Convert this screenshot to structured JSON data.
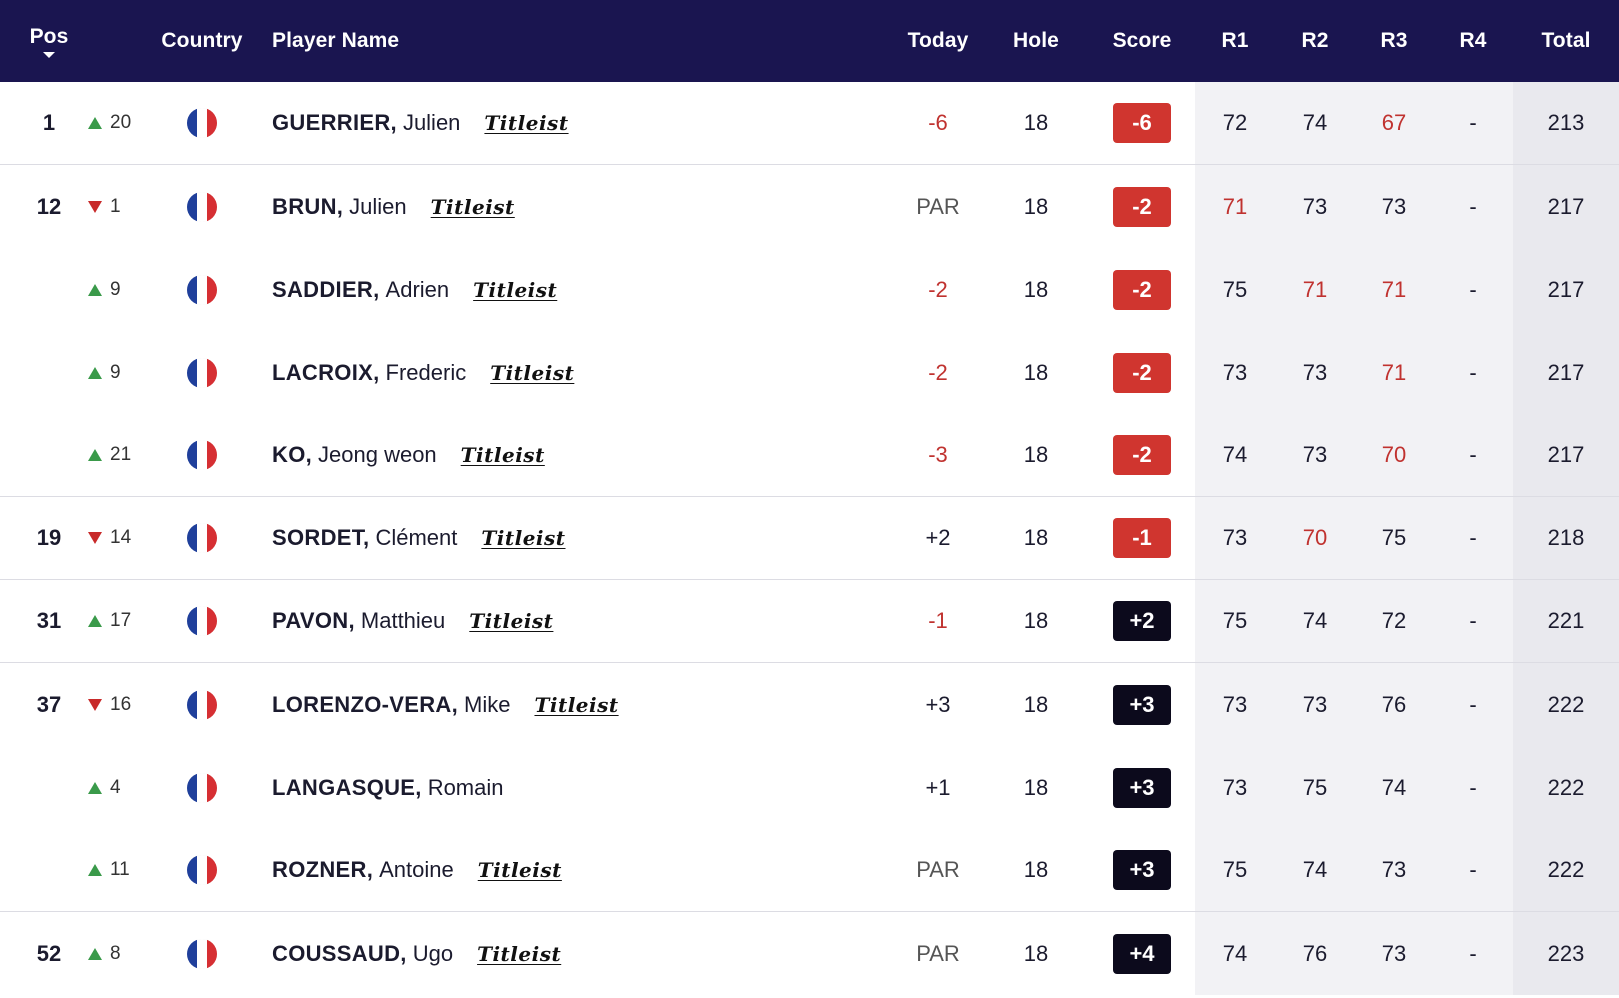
{
  "header": {
    "pos": "Pos",
    "country": "Country",
    "player_name": "Player Name",
    "today": "Today",
    "hole": "Hole",
    "score": "Score",
    "r1": "R1",
    "r2": "R2",
    "r3": "R3",
    "r4": "R4",
    "total": "Total"
  },
  "colors": {
    "header_bg": "#1a1550",
    "under_par": "#d0352f",
    "over_par": "#0c0a1c",
    "move_up": "#3a9a4a",
    "move_down": "#c82a2a"
  },
  "rows": [
    {
      "pos": "1",
      "dir": "up",
      "move": "20",
      "last": "GUERRIER,",
      "first": "Julien",
      "sponsor": "Titleist",
      "today": "-6",
      "hole": "18",
      "score": "-6",
      "r1": "72",
      "r2": "74",
      "r3": "67",
      "r4": "-",
      "total": "213",
      "sep": true
    },
    {
      "pos": "12",
      "dir": "down",
      "move": "1",
      "last": "BRUN,",
      "first": "Julien",
      "sponsor": "Titleist",
      "today": "PAR",
      "hole": "18",
      "score": "-2",
      "r1": "71",
      "r2": "73",
      "r3": "73",
      "r4": "-",
      "total": "217",
      "sep": false
    },
    {
      "pos": "",
      "dir": "up",
      "move": "9",
      "last": "SADDIER,",
      "first": "Adrien",
      "sponsor": "Titleist",
      "today": "-2",
      "hole": "18",
      "score": "-2",
      "r1": "75",
      "r2": "71",
      "r3": "71",
      "r4": "-",
      "total": "217",
      "sep": false
    },
    {
      "pos": "",
      "dir": "up",
      "move": "9",
      "last": "LACROIX,",
      "first": "Frederic",
      "sponsor": "Titleist",
      "today": "-2",
      "hole": "18",
      "score": "-2",
      "r1": "73",
      "r2": "73",
      "r3": "71",
      "r4": "-",
      "total": "217",
      "sep": false
    },
    {
      "pos": "",
      "dir": "up",
      "move": "21",
      "last": "KO,",
      "first": "Jeong weon",
      "sponsor": "Titleist",
      "today": "-3",
      "hole": "18",
      "score": "-2",
      "r1": "74",
      "r2": "73",
      "r3": "70",
      "r4": "-",
      "total": "217",
      "sep": true
    },
    {
      "pos": "19",
      "dir": "down",
      "move": "14",
      "last": "SORDET,",
      "first": "Clément",
      "sponsor": "Titleist",
      "today": "+2",
      "hole": "18",
      "score": "-1",
      "r1": "73",
      "r2": "70",
      "r3": "75",
      "r4": "-",
      "total": "218",
      "sep": true
    },
    {
      "pos": "31",
      "dir": "up",
      "move": "17",
      "last": "PAVON,",
      "first": "Matthieu",
      "sponsor": "Titleist",
      "today": "-1",
      "hole": "18",
      "score": "+2",
      "r1": "75",
      "r2": "74",
      "r3": "72",
      "r4": "-",
      "total": "221",
      "sep": true
    },
    {
      "pos": "37",
      "dir": "down",
      "move": "16",
      "last": "LORENZO-VERA,",
      "first": "Mike",
      "sponsor": "Titleist",
      "today": "+3",
      "hole": "18",
      "score": "+3",
      "r1": "73",
      "r2": "73",
      "r3": "76",
      "r4": "-",
      "total": "222",
      "sep": false
    },
    {
      "pos": "",
      "dir": "up",
      "move": "4",
      "last": "LANGASQUE,",
      "first": "Romain",
      "sponsor": "",
      "today": "+1",
      "hole": "18",
      "score": "+3",
      "r1": "73",
      "r2": "75",
      "r3": "74",
      "r4": "-",
      "total": "222",
      "sep": false
    },
    {
      "pos": "",
      "dir": "up",
      "move": "11",
      "last": "ROZNER,",
      "first": "Antoine",
      "sponsor": "Titleist",
      "today": "PAR",
      "hole": "18",
      "score": "+3",
      "r1": "75",
      "r2": "74",
      "r3": "73",
      "r4": "-",
      "total": "222",
      "sep": true
    },
    {
      "pos": "52",
      "dir": "up",
      "move": "8",
      "last": "COUSSAUD,",
      "first": "Ugo",
      "sponsor": "Titleist",
      "today": "PAR",
      "hole": "18",
      "score": "+4",
      "r1": "74",
      "r2": "76",
      "r3": "73",
      "r4": "-",
      "total": "223",
      "sep": false
    }
  ]
}
